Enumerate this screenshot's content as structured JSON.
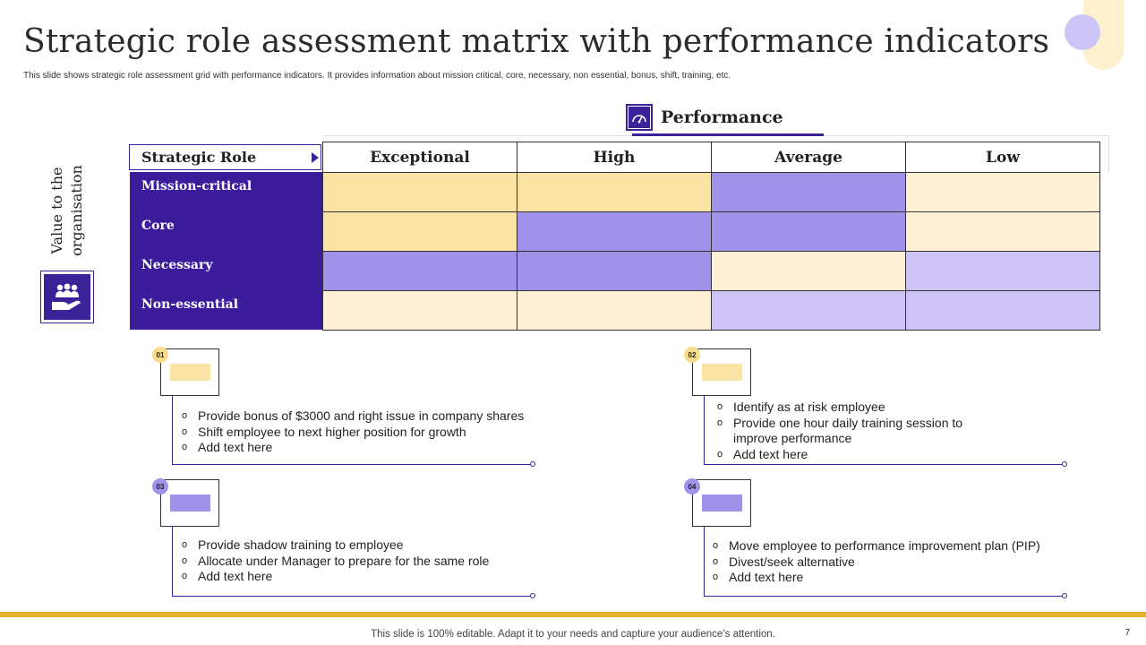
{
  "title": "Strategic role assessment matrix with performance indicators",
  "subtitle": "This slide shows strategic role assessment grid with performance indicators. It provides information about mission critical, core, necessary, non essential, bonus, shift, training, etc.",
  "performance_label": "Performance",
  "value_label": [
    "Value to the",
    "organisation"
  ],
  "strategic_role_header": "Strategic Role",
  "columns": [
    "Exceptional",
    "High",
    "Average",
    "Low"
  ],
  "rows": [
    {
      "label": "Mission-critical",
      "cells": [
        "#fae3a4",
        "#fae3a4",
        "#a092e8",
        "#fdf0d4"
      ]
    },
    {
      "label": "Core",
      "cells": [
        "#fae3a4",
        "#a092e8",
        "#a092e8",
        "#fdf0d4"
      ]
    },
    {
      "label": "Necessary",
      "cells": [
        "#a092e8",
        "#a092e8",
        "#fdf0d4",
        "#cdc4f5"
      ]
    },
    {
      "label": "Non-essential",
      "cells": [
        "#fdf0d4",
        "#fdf0d4",
        "#cdc4f5",
        "#cdc4f5"
      ]
    }
  ],
  "cards": [
    {
      "number": "01",
      "badge_color": "#f8dc8b",
      "fill_color": "#fae3a4",
      "items": [
        "Provide bonus of $3000 and right issue in company shares",
        "Shift employee to next higher position for growth",
        "Add text here"
      ]
    },
    {
      "number": "02",
      "badge_color": "#f8dc8b",
      "fill_color": "#fae3a4",
      "items": [
        "Identify as at risk employee",
        "Provide one hour daily training session to improve performance",
        "Add text here"
      ]
    },
    {
      "number": "03",
      "badge_color": "#a092e8",
      "fill_color": "#a092e8",
      "items": [
        "Provide shadow training to employee",
        "Allocate under Manager to prepare for the same role",
        "Add text here"
      ]
    },
    {
      "number": "04",
      "badge_color": "#a092e8",
      "fill_color": "#a092e8",
      "items": [
        "Move employee to performance improvement plan (PIP)",
        "Divest/seek alternative",
        "Add text here"
      ]
    }
  ],
  "footer": "This slide is 100% editable. Adapt it to your needs and capture your audience’s attention.",
  "page_number": "7",
  "colors": {
    "accent_purple": "#3b1d9c",
    "gold": "#e3b32e",
    "light_gold": "#fae3a4",
    "pale_gold": "#fdf0d4",
    "mid_purple": "#a092e8",
    "light_purple": "#cdc4f5"
  }
}
